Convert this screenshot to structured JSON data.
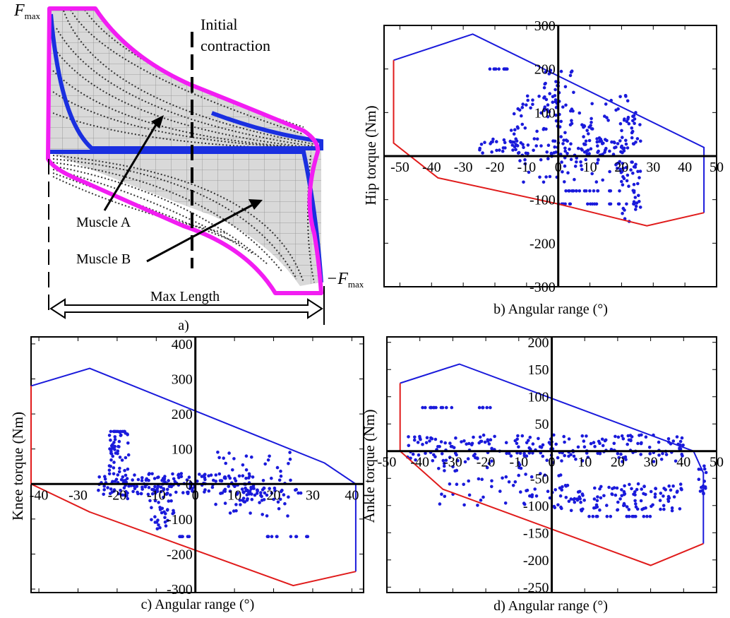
{
  "panel_a": {
    "fmax": "F",
    "fmax_sub": "max",
    "neg_fmax": "−F",
    "neg_fmax_sub": "max",
    "initial_contraction_line1": "Initial",
    "initial_contraction_line2": "contraction",
    "muscle_a": "Muscle A",
    "muscle_b": "Muscle B",
    "max_length": "Max Length",
    "caption": "a)"
  },
  "chart_data": [
    {
      "id": "b",
      "type": "scatter",
      "caption": "b)  Angular range (°)",
      "xlabel": "Angular range (°)",
      "ylabel": "Hip torque (Nm)",
      "xlim": [
        -55,
        50
      ],
      "ylim": [
        -300,
        300
      ],
      "xticks": [
        -50,
        -40,
        -30,
        -20,
        -10,
        0,
        10,
        20,
        30,
        40,
        50
      ],
      "xtick_labels": [
        "-50",
        "-40",
        "-30",
        "-20",
        "-10",
        "0",
        "10",
        "20",
        "30",
        "40",
        "50"
      ],
      "yticks": [
        -300,
        -200,
        -100,
        0,
        100,
        200,
        300
      ],
      "ytick_labels": [
        "-300",
        "-200",
        "-100",
        "",
        "100",
        "200",
        "300"
      ],
      "envelope_upper": [
        [
          -52,
          220
        ],
        [
          -27,
          280
        ],
        [
          46,
          20
        ],
        [
          46,
          -130
        ]
      ],
      "envelope_lower": [
        [
          -52,
          220
        ],
        [
          -52,
          30
        ],
        [
          -38,
          -50
        ],
        [
          0,
          -110
        ],
        [
          28,
          -160
        ],
        [
          46,
          -130
        ]
      ],
      "clusters": [
        {
          "x": [
            -22,
            -15
          ],
          "y": [
            200,
            200
          ],
          "n": 12
        },
        {
          "x": [
            -15,
            22
          ],
          "y": [
            -60,
            140
          ],
          "n": 140
        },
        {
          "x": [
            -5,
            5
          ],
          "y": [
            60,
            200
          ],
          "n": 45
        },
        {
          "x": [
            -25,
            25
          ],
          "y": [
            0,
            40
          ],
          "n": 90
        },
        {
          "x": [
            20,
            26
          ],
          "y": [
            -150,
            100
          ],
          "n": 55
        },
        {
          "x": [
            2,
            24
          ],
          "y": [
            -80,
            -80
          ],
          "n": 18
        },
        {
          "x": [
            0,
            24
          ],
          "y": [
            -110,
            -110
          ],
          "n": 18
        }
      ],
      "colors": {
        "upper": "#1a1adb",
        "lower": "#e01b1b",
        "points": "#1a1adb"
      }
    },
    {
      "id": "c",
      "type": "scatter",
      "caption": "c)  Angular range (°)",
      "xlabel": "Angular range (°)",
      "ylabel": "Knee torque (Nm)",
      "xlim": [
        -42,
        43
      ],
      "ylim": [
        -310,
        420
      ],
      "xticks": [
        -40,
        -30,
        -20,
        -10,
        0,
        10,
        20,
        30,
        40
      ],
      "xtick_labels": [
        "-40",
        "-30",
        "-20",
        "-10",
        "0",
        "10",
        "20",
        "30",
        "40"
      ],
      "yticks": [
        -300,
        -200,
        -100,
        0,
        100,
        200,
        300,
        400
      ],
      "ytick_labels": [
        "-300",
        "-200",
        "-100",
        "0",
        "100",
        "200",
        "300",
        "400"
      ],
      "envelope_upper": [
        [
          -42,
          280
        ],
        [
          -27,
          330
        ],
        [
          33,
          60
        ],
        [
          41,
          0
        ],
        [
          41,
          -250
        ]
      ],
      "envelope_lower": [
        [
          -42,
          280
        ],
        [
          -42,
          0
        ],
        [
          -27,
          -80
        ],
        [
          25,
          -290
        ],
        [
          41,
          -250
        ]
      ],
      "clusters": [
        {
          "x": [
            -22,
            -18
          ],
          "y": [
            150,
            150
          ],
          "n": 10
        },
        {
          "x": [
            -25,
            15
          ],
          "y": [
            -30,
            30
          ],
          "n": 160
        },
        {
          "x": [
            -22,
            -17
          ],
          "y": [
            -60,
            150
          ],
          "n": 60
        },
        {
          "x": [
            -12,
            -5
          ],
          "y": [
            -130,
            0
          ],
          "n": 45
        },
        {
          "x": [
            -5,
            0
          ],
          "y": [
            -150,
            -150
          ],
          "n": 8
        },
        {
          "x": [
            5,
            25
          ],
          "y": [
            -100,
            100
          ],
          "n": 55
        },
        {
          "x": [
            18,
            30
          ],
          "y": [
            -150,
            -150
          ],
          "n": 12
        },
        {
          "x": [
            10,
            27
          ],
          "y": [
            -60,
            -10
          ],
          "n": 40
        }
      ],
      "colors": {
        "upper": "#1a1adb",
        "lower": "#e01b1b",
        "points": "#1a1adb"
      }
    },
    {
      "id": "d",
      "type": "scatter",
      "caption": "d)  Angular range (°)",
      "xlabel": "Angular range (°)",
      "ylabel": "Ankle torque (Nm)",
      "xlim": [
        -50,
        50
      ],
      "ylim": [
        -260,
        210
      ],
      "xticks": [
        -50,
        -40,
        -30,
        -20,
        -10,
        0,
        10,
        20,
        30,
        40,
        50
      ],
      "xtick_labels": [
        "-50",
        "-40",
        "-30",
        "-20",
        "-10",
        "0",
        "10",
        "20",
        "30",
        "40",
        "50"
      ],
      "yticks": [
        -250,
        -200,
        -150,
        -100,
        -50,
        0,
        50,
        100,
        150,
        200
      ],
      "ytick_labels": [
        "-250",
        "-200",
        "-150",
        "-100",
        "-50",
        "",
        "50",
        "100",
        "150",
        "200"
      ],
      "envelope_upper": [
        [
          -46,
          125
        ],
        [
          -28,
          160
        ],
        [
          43,
          0
        ],
        [
          46,
          -40
        ],
        [
          46,
          -170
        ]
      ],
      "envelope_lower": [
        [
          -46,
          125
        ],
        [
          -46,
          0
        ],
        [
          -33,
          -70
        ],
        [
          30,
          -210
        ],
        [
          46,
          -170
        ]
      ],
      "clusters": [
        {
          "x": [
            -45,
            40
          ],
          "y": [
            -20,
            30
          ],
          "n": 220
        },
        {
          "x": [
            -40,
            -30
          ],
          "y": [
            80,
            80
          ],
          "n": 12
        },
        {
          "x": [
            -22,
            -18
          ],
          "y": [
            80,
            80
          ],
          "n": 6
        },
        {
          "x": [
            -35,
            5
          ],
          "y": [
            -100,
            -20
          ],
          "n": 60
        },
        {
          "x": [
            0,
            40
          ],
          "y": [
            -110,
            -60
          ],
          "n": 120
        },
        {
          "x": [
            10,
            30
          ],
          "y": [
            -120,
            -120
          ],
          "n": 15
        },
        {
          "x": [
            44,
            47
          ],
          "y": [
            -80,
            -20
          ],
          "n": 15
        }
      ],
      "colors": {
        "upper": "#1a1adb",
        "lower": "#e01b1b",
        "points": "#1a1adb"
      }
    }
  ]
}
